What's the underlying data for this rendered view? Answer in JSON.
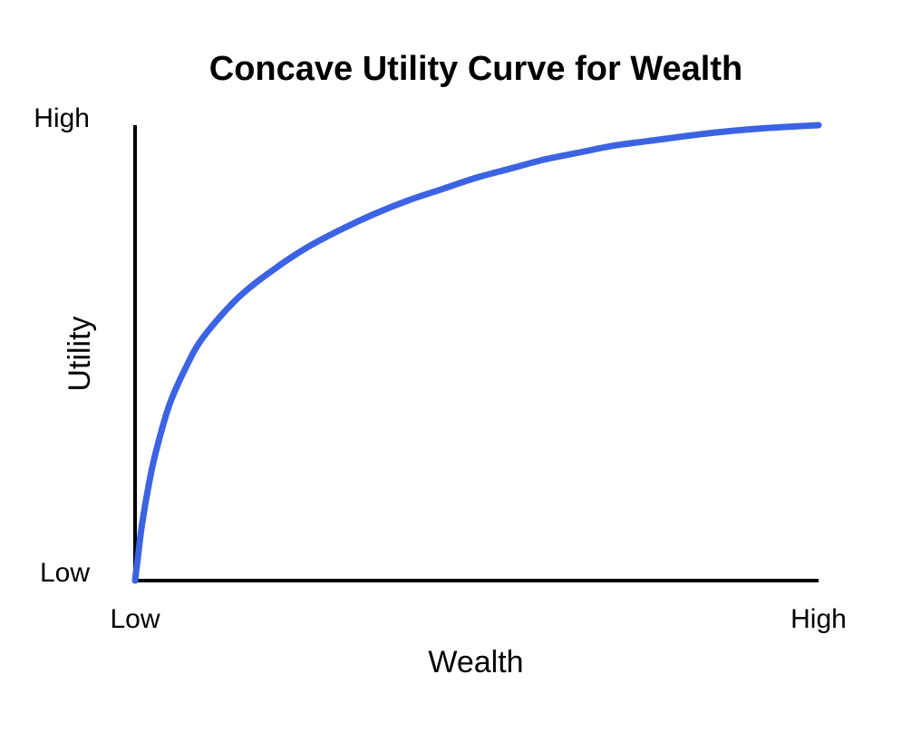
{
  "chart_data": {
    "type": "line",
    "title": "Concave Utility Curve for Wealth",
    "xlabel": "Wealth",
    "ylabel": "Utility",
    "x_ticks": [
      "Low",
      "High"
    ],
    "y_ticks": [
      "Low",
      "High"
    ],
    "xlim": [
      0,
      1
    ],
    "ylim": [
      0,
      1
    ],
    "grid": false,
    "series": [
      {
        "color": "#3b63e3",
        "x": [
          0,
          0.005,
          0.01,
          0.02,
          0.03,
          0.05,
          0.075,
          0.1,
          0.15,
          0.2,
          0.25,
          0.3,
          0.35,
          0.4,
          0.45,
          0.5,
          0.55,
          0.6,
          0.65,
          0.7,
          0.75,
          0.8,
          0.85,
          0.9,
          0.95,
          1.0
        ],
        "y": [
          0,
          0.062,
          0.122,
          0.21,
          0.28,
          0.385,
          0.47,
          0.535,
          0.62,
          0.68,
          0.73,
          0.77,
          0.805,
          0.835,
          0.86,
          0.885,
          0.905,
          0.925,
          0.94,
          0.955,
          0.965,
          0.975,
          0.984,
          0.991,
          0.996,
          1.0
        ]
      }
    ],
    "axis_color": "#000000"
  }
}
